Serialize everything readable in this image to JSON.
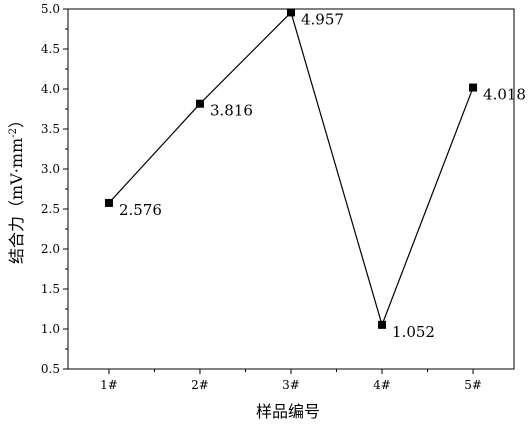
{
  "chart_data": {
    "type": "line",
    "categories": [
      "1#",
      "2#",
      "3#",
      "4#",
      "5#"
    ],
    "series": [
      {
        "values": [
          2.576,
          3.816,
          4.957,
          1.052,
          4.018
        ],
        "data_labels": [
          "2.576",
          "3.816",
          "4.957",
          "1.052",
          "4.018"
        ]
      }
    ],
    "xlabel": "样品编号",
    "ylabel_main": "结合力（mV·mm",
    "ylabel_sup": "-2",
    "ylabel_close": "）",
    "ylim": [
      0.5,
      5.0
    ],
    "yticks": [
      0.5,
      1.0,
      1.5,
      2.0,
      2.5,
      3.0,
      3.5,
      4.0,
      4.5,
      5.0
    ],
    "ytick_labels": [
      "0.5",
      "1.0",
      "1.5",
      "2.0",
      "2.5",
      "3.0",
      "3.5",
      "4.0",
      "4.5",
      "5.0"
    ],
    "grid": false,
    "legend": false,
    "marker": "square",
    "line_color": "#000000"
  }
}
